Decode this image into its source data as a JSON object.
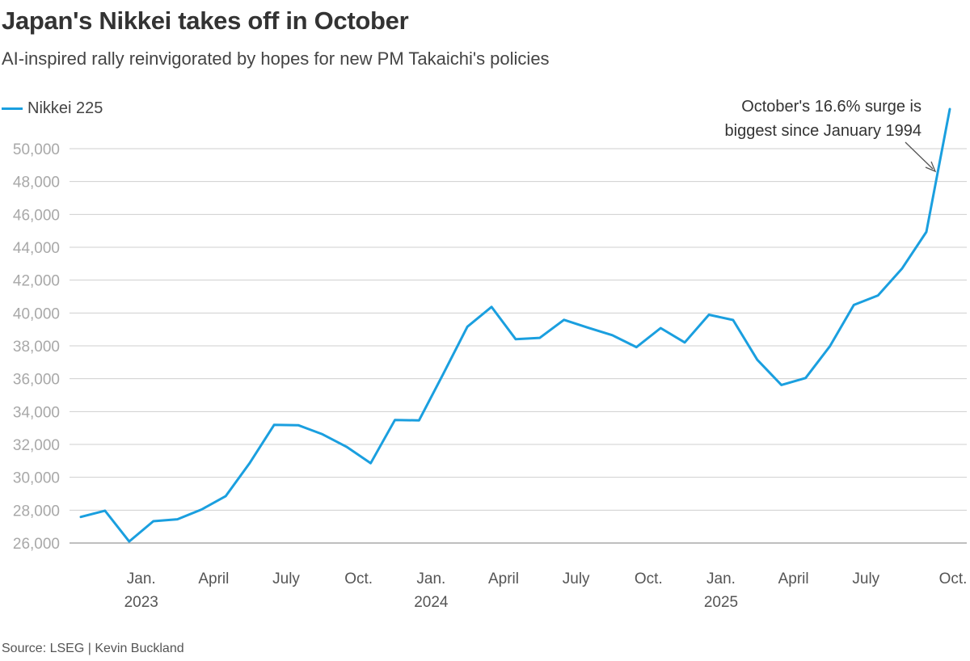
{
  "header": {
    "title": "Japan's Nikkei takes off in October",
    "subtitle": "AI-inspired rally reinvigorated by hopes for new PM Takaichi's policies"
  },
  "footer": {
    "source": "Source: LSEG | Kevin Buckland"
  },
  "colors": {
    "series": "#1a9fdf",
    "grid": "#cfcfcf",
    "axis": "#999999"
  },
  "chart_data": {
    "type": "line",
    "title": "Japan's Nikkei takes off in October",
    "ylim": [
      26000,
      51000
    ],
    "yticks": [
      26000,
      28000,
      30000,
      32000,
      34000,
      36000,
      38000,
      40000,
      42000,
      44000,
      46000,
      48000,
      50000
    ],
    "ytick_labels": [
      "26,000",
      "28,000",
      "30,000",
      "32,000",
      "34,000",
      "36,000",
      "38,000",
      "40,000",
      "42,000",
      "44,000",
      "46,000",
      "48,000",
      "50,000"
    ],
    "grid": true,
    "legend_position": "top-left",
    "x_month_range": [
      0,
      35
    ],
    "xticks": [
      {
        "month": 3,
        "label": "Jan.",
        "year": "2023"
      },
      {
        "month": 6,
        "label": "April",
        "year": ""
      },
      {
        "month": 9,
        "label": "July",
        "year": ""
      },
      {
        "month": 12,
        "label": "Oct.",
        "year": ""
      },
      {
        "month": 15,
        "label": "Jan.",
        "year": "2024"
      },
      {
        "month": 18,
        "label": "April",
        "year": ""
      },
      {
        "month": 21,
        "label": "July",
        "year": ""
      },
      {
        "month": 24,
        "label": "Oct.",
        "year": ""
      },
      {
        "month": 27,
        "label": "Jan.",
        "year": "2025"
      },
      {
        "month": 30,
        "label": "April",
        "year": ""
      },
      {
        "month": 33,
        "label": "July",
        "year": ""
      },
      {
        "month": 36,
        "label": "Oct.",
        "year": ""
      }
    ],
    "series": [
      {
        "name": "Nikkei 225",
        "x": [
          0,
          1,
          2,
          3,
          4,
          5,
          6,
          7,
          8,
          9,
          10,
          11,
          12,
          13,
          14,
          15,
          16,
          17,
          18,
          19,
          20,
          21,
          22,
          23,
          24,
          25,
          26,
          27,
          28,
          29,
          30,
          31,
          32,
          33,
          34,
          35
        ],
        "values": [
          27587,
          27969,
          26095,
          27327,
          27446,
          28041,
          28856,
          30888,
          33189,
          33172,
          32619,
          31858,
          30859,
          33487,
          33464,
          36287,
          39166,
          40369,
          38406,
          38488,
          39583,
          39101,
          38648,
          37920,
          39081,
          38208,
          39895,
          39573,
          37156,
          35618,
          36045,
          37965,
          40487,
          41069,
          42718,
          44932
        ]
      }
    ],
    "final_point": {
      "x": 36,
      "value": 52411
    },
    "annotation": {
      "lines": [
        "October's 16.6% surge is",
        "biggest since January 1994"
      ]
    }
  }
}
